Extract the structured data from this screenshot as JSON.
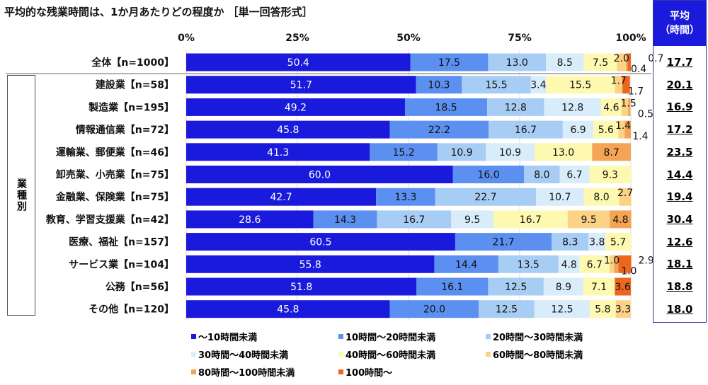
{
  "title": "平均的な残業時間は、1か月あたりどの程度か ［単一回答形式］",
  "average_header": [
    "平均",
    "（時間）"
  ],
  "group_label": "業種別",
  "chart_data": {
    "type": "bar",
    "orientation": "horizontal",
    "stacked": true,
    "xlim": [
      0,
      100
    ],
    "x_ticks": [
      "0%",
      "25%",
      "50%",
      "75%",
      "100%"
    ],
    "categories": [
      "全体【n=1000】",
      "建設業【n=58】",
      "製造業【n=195】",
      "情報通信業【n=72】",
      "運輸業、郵便業【n=46】",
      "卸売業、小売業【n=75】",
      "金融業、保険業【n=75】",
      "教育、学習支援業【n=42】",
      "医療、福祉【n=157】",
      "サービス業【n=104】",
      "公務【n=56】",
      "その他【n=120】"
    ],
    "series": [
      {
        "name": "～10時間未満",
        "color": "#1a1adc",
        "values": [
          50.4,
          51.7,
          49.2,
          45.8,
          41.3,
          60.0,
          42.7,
          28.6,
          60.5,
          55.8,
          51.8,
          45.8
        ]
      },
      {
        "name": "10時間～20時間未満",
        "color": "#5b8ff0",
        "values": [
          17.5,
          10.3,
          18.5,
          22.2,
          15.2,
          16.0,
          13.3,
          14.3,
          21.7,
          14.4,
          16.1,
          20.0
        ]
      },
      {
        "name": "20時間～30時間未満",
        "color": "#a8cdf4",
        "values": [
          13.0,
          15.5,
          12.8,
          16.7,
          10.9,
          8.0,
          22.7,
          16.7,
          8.3,
          13.5,
          12.5,
          12.5
        ]
      },
      {
        "name": "30時間～40時間未満",
        "color": "#d8ecfa",
        "values": [
          8.5,
          3.4,
          12.8,
          6.9,
          10.9,
          6.7,
          10.7,
          9.5,
          3.8,
          4.8,
          8.9,
          12.5
        ]
      },
      {
        "name": "40時間～60時間未満",
        "color": "#fdf9b0",
        "values": [
          7.5,
          15.5,
          4.6,
          5.6,
          13.0,
          9.3,
          8.0,
          16.7,
          5.7,
          6.7,
          7.1,
          5.8
        ]
      },
      {
        "name": "60時間～80時間未満",
        "color": "#fbd286",
        "values": [
          2.0,
          1.7,
          1.5,
          1.4,
          0,
          0,
          2.7,
          9.5,
          0,
          1.0,
          0,
          3.3
        ]
      },
      {
        "name": "80時間～100時間未満",
        "color": "#f3a455",
        "values": [
          0.4,
          0,
          0.5,
          1.4,
          8.7,
          0,
          0,
          4.8,
          0,
          1.0,
          0,
          0
        ]
      },
      {
        "name": "100時間～",
        "color": "#ec661c",
        "values": [
          0.7,
          1.7,
          0,
          0,
          0,
          0,
          0,
          0,
          0,
          2.9,
          3.6,
          0
        ]
      }
    ],
    "averages": [
      "17.7",
      "20.1",
      "16.9",
      "17.2",
      "23.5",
      "14.4",
      "19.4",
      "30.4",
      "12.6",
      "18.1",
      "18.8",
      "18.0"
    ],
    "legend": "bottom",
    "grid": true
  }
}
